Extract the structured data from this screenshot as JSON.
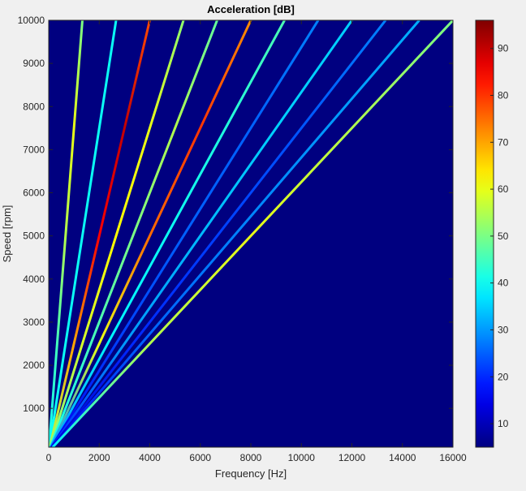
{
  "chart_data": {
    "type": "heatmap",
    "title": "Acceleration [dB]",
    "xlabel": "Frequency [Hz]",
    "ylabel": "Speed [rpm]",
    "xlim": [
      0,
      16000
    ],
    "ylim": [
      100,
      10000
    ],
    "xticks": [
      0,
      2000,
      4000,
      6000,
      8000,
      10000,
      12000,
      14000,
      16000
    ],
    "yticks": [
      1000,
      2000,
      3000,
      4000,
      5000,
      6000,
      7000,
      8000,
      9000,
      10000
    ],
    "colorbar": {
      "clim": [
        5,
        96
      ],
      "ticks": [
        10,
        20,
        30,
        40,
        50,
        60,
        70,
        80,
        90
      ],
      "colormap": "jet"
    },
    "background_level_db": 5,
    "rpm_samples": [
      100,
      2500,
      5000,
      7500,
      10000
    ],
    "series": [
      {
        "order": 8,
        "db": [
          40,
          45,
          55,
          60,
          50
        ]
      },
      {
        "order": 16,
        "db": [
          40,
          40,
          40,
          40,
          40
        ]
      },
      {
        "order": 24,
        "db": [
          55,
          70,
          85,
          90,
          78
        ]
      },
      {
        "order": 32,
        "db": [
          50,
          58,
          62,
          60,
          52
        ]
      },
      {
        "order": 40,
        "db": [
          40,
          45,
          50,
          55,
          48
        ]
      },
      {
        "order": 48,
        "db": [
          30,
          60,
          75,
          80,
          72
        ]
      },
      {
        "order": 56,
        "db": [
          30,
          38,
          40,
          42,
          46
        ]
      },
      {
        "order": 64,
        "db": [
          15,
          22,
          25,
          25,
          28
        ]
      },
      {
        "order": 72,
        "db": [
          20,
          30,
          33,
          35,
          35
        ]
      },
      {
        "order": 80,
        "db": [
          12,
          20,
          22,
          24,
          28
        ]
      },
      {
        "order": 88,
        "db": [
          15,
          25,
          28,
          30,
          32
        ]
      },
      {
        "order": 96,
        "db": [
          38,
          55,
          60,
          55,
          50
        ]
      }
    ]
  }
}
